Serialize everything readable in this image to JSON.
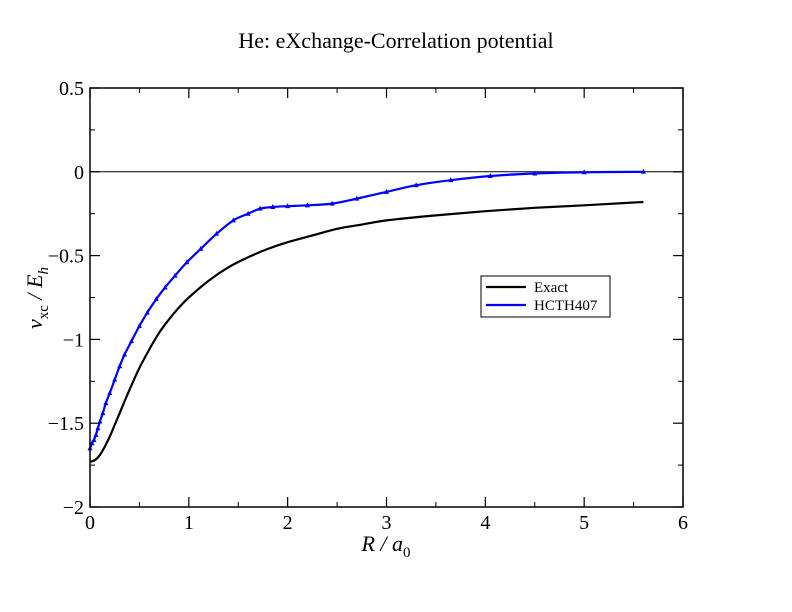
{
  "chart_data": {
    "type": "line",
    "title": "He: eXchange-Correlation potential",
    "xlabel": {
      "main": "R / a",
      "sub": "0"
    },
    "ylabel": {
      "v": "v",
      "v_sub": "xc",
      "mid": " / E",
      "e_sub": "h"
    },
    "xlim": [
      0,
      6
    ],
    "ylim": [
      -2,
      0.5
    ],
    "x_ticks": [
      0,
      1,
      2,
      3,
      4,
      5,
      6
    ],
    "x_tick_labels": [
      "0",
      "1",
      "2",
      "3",
      "4",
      "5",
      "6"
    ],
    "y_ticks": [
      -2,
      -1.5,
      -1,
      -0.5,
      0,
      0.5
    ],
    "y_tick_labels": [
      "−2",
      "−1.5",
      "−1",
      "−0.5",
      "0",
      "0.5"
    ],
    "grid": false,
    "zero_line": true,
    "legend_position": "right",
    "series": [
      {
        "name": "Exact",
        "color": "#000000",
        "markers": false,
        "x": [
          0.0,
          0.05,
          0.1,
          0.15,
          0.2,
          0.25,
          0.3,
          0.4,
          0.5,
          0.6,
          0.7,
          0.8,
          0.9,
          1.0,
          1.2,
          1.4,
          1.6,
          1.8,
          2.0,
          2.25,
          2.5,
          2.75,
          3.0,
          3.5,
          4.0,
          4.5,
          5.0,
          5.6
        ],
        "y": [
          -1.73,
          -1.72,
          -1.69,
          -1.64,
          -1.58,
          -1.51,
          -1.44,
          -1.3,
          -1.17,
          -1.06,
          -0.96,
          -0.88,
          -0.81,
          -0.75,
          -0.65,
          -0.57,
          -0.51,
          -0.46,
          -0.42,
          -0.38,
          -0.34,
          -0.315,
          -0.29,
          -0.26,
          -0.235,
          -0.215,
          -0.2,
          -0.18
        ]
      },
      {
        "name": "HCTH407",
        "color": "#0000ff",
        "markers": true,
        "x": [
          0.0,
          0.02,
          0.04,
          0.06,
          0.08,
          0.1,
          0.13,
          0.16,
          0.2,
          0.25,
          0.3,
          0.35,
          0.42,
          0.5,
          0.58,
          0.67,
          0.76,
          0.86,
          0.98,
          1.12,
          1.28,
          1.45,
          1.6,
          1.72,
          1.85,
          2.0,
          2.2,
          2.45,
          2.7,
          3.0,
          3.3,
          3.65,
          4.05,
          4.5,
          5.0,
          5.6
        ],
        "y": [
          -1.65,
          -1.62,
          -1.6,
          -1.57,
          -1.53,
          -1.49,
          -1.44,
          -1.38,
          -1.32,
          -1.24,
          -1.16,
          -1.09,
          -1.01,
          -0.92,
          -0.84,
          -0.76,
          -0.69,
          -0.62,
          -0.54,
          -0.46,
          -0.37,
          -0.29,
          -0.25,
          -0.22,
          -0.21,
          -0.205,
          -0.2,
          -0.19,
          -0.16,
          -0.12,
          -0.08,
          -0.05,
          -0.025,
          -0.01,
          -0.003,
          0.0
        ]
      }
    ]
  }
}
